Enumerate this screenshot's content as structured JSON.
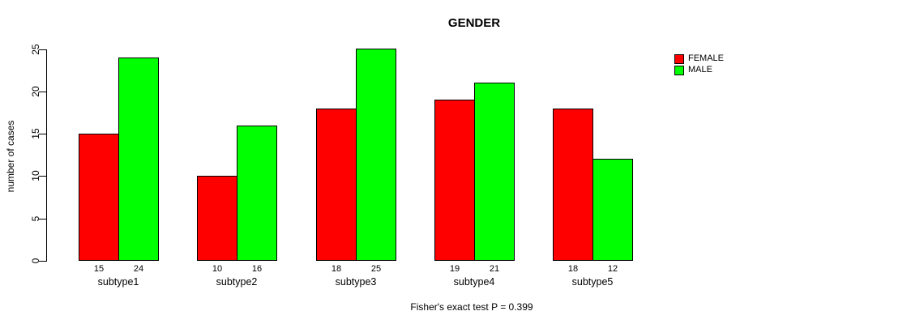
{
  "chart_data": {
    "type": "bar",
    "title": "GENDER",
    "xlabel": "",
    "ylabel": "number of cases",
    "categories": [
      "subtype1",
      "subtype2",
      "subtype3",
      "subtype4",
      "subtype5"
    ],
    "series": [
      {
        "name": "FEMALE",
        "color": "#ff0000",
        "values": [
          15,
          10,
          18,
          19,
          18
        ]
      },
      {
        "name": "MALE",
        "color": "#00ff00",
        "values": [
          24,
          16,
          25,
          21,
          12
        ]
      }
    ],
    "yticks": [
      0,
      5,
      10,
      15,
      20,
      25
    ],
    "ylim": [
      0,
      25
    ],
    "grid": false,
    "bar_value_labels": true,
    "legend_position": "topright",
    "footnote": "Fisher's exact test P = 0.399",
    "colors": {
      "female": "#ff0000",
      "male": "#00ff00",
      "axis": "#000000",
      "background": "#ffffff"
    }
  }
}
